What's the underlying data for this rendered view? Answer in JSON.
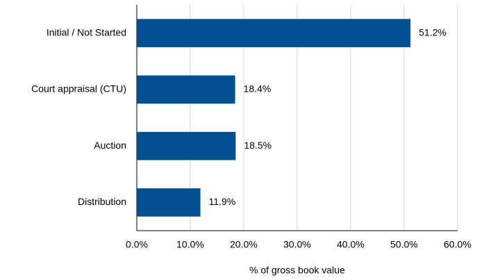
{
  "chart_data": {
    "type": "hbar",
    "categories": [
      "Initial / Not Started",
      "Court appraisal (CTU)",
      "Auction",
      "Distribution"
    ],
    "values": [
      51.2,
      18.4,
      18.5,
      11.9
    ],
    "value_labels": [
      "51.2%",
      "18.4%",
      "18.5%",
      "11.9%"
    ],
    "color": "#034f8f",
    "xlabel": "% of gross book value",
    "xlim": [
      0,
      60
    ],
    "xticks": [
      {
        "value": 0,
        "label": "0.0%"
      },
      {
        "value": 10,
        "label": "10.0%"
      },
      {
        "value": 20,
        "label": "20.0%"
      },
      {
        "value": 30,
        "label": "30.0%"
      },
      {
        "value": 40,
        "label": "40.0%"
      },
      {
        "value": 50,
        "label": "50.0%"
      },
      {
        "value": 60,
        "label": "60.0%"
      }
    ],
    "grid": true
  }
}
